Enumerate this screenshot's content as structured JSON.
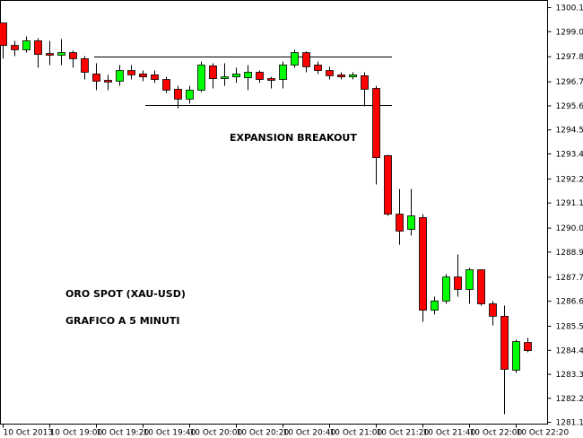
{
  "chart_data": {
    "type": "candlestick",
    "x": [
      "10 Oct 2013",
      null,
      null,
      null,
      "10 Oct 19:00",
      null,
      null,
      null,
      "10 Oct 19:20",
      null,
      null,
      null,
      "10 Oct 19:40",
      null,
      null,
      null,
      "10 Oct 20:00",
      null,
      null,
      null,
      "10 Oct 20:20",
      null,
      null,
      null,
      "10 Oct 20:40",
      null,
      null,
      null,
      "10 Oct 21:00",
      null,
      null,
      null,
      "10 Oct 21:20",
      null,
      null,
      null,
      "10 Oct 21:40",
      null,
      null,
      null,
      "10 Oct 22:00",
      null,
      null,
      null,
      "10 Oct 22:20",
      null
    ],
    "open": [
      1299.4,
      1298.37,
      1298.17,
      1298.58,
      1298.0,
      1297.92,
      1298.04,
      1297.76,
      1297.06,
      1296.77,
      1296.73,
      1297.22,
      1297.06,
      1297.02,
      1296.81,
      1296.36,
      1295.91,
      1296.32,
      1297.43,
      1296.85,
      1296.93,
      1296.89,
      1297.14,
      1296.85,
      1296.81,
      1297.47,
      1298.04,
      1297.47,
      1297.22,
      1297.02,
      1296.93,
      1296.98,
      1296.4,
      1293.32,
      1290.64,
      1289.94,
      1290.48,
      1286.24,
      1286.66,
      1287.76,
      1287.19,
      1288.09,
      1286.53,
      1285.96,
      1283.49,
      1284.76
    ],
    "high": [
      1299.4,
      1298.58,
      1298.78,
      1298.7,
      1298.58,
      1298.66,
      1298.13,
      1297.88,
      1297.55,
      1297.02,
      1297.47,
      1297.47,
      1297.22,
      1297.22,
      1296.93,
      1296.52,
      1296.52,
      1297.63,
      1297.55,
      1297.55,
      1297.35,
      1297.47,
      1297.22,
      1296.93,
      1297.63,
      1298.17,
      1298.09,
      1297.63,
      1297.39,
      1297.14,
      1297.14,
      1297.14,
      1296.52,
      1293.36,
      1291.79,
      1291.79,
      1290.64,
      1286.86,
      1287.89,
      1288.79,
      1288.18,
      1288.09,
      1286.66,
      1286.45,
      1284.89,
      1284.97
    ],
    "low": [
      1297.76,
      1297.88,
      1298.04,
      1297.35,
      1297.47,
      1297.47,
      1297.35,
      1296.81,
      1296.32,
      1296.32,
      1296.52,
      1296.81,
      1296.73,
      1296.65,
      1296.19,
      1295.49,
      1295.7,
      1296.23,
      1296.4,
      1296.52,
      1296.65,
      1296.32,
      1296.65,
      1296.4,
      1296.4,
      1297.35,
      1297.14,
      1297.06,
      1296.81,
      1296.81,
      1296.81,
      1295.58,
      1292.0,
      1290.56,
      1289.24,
      1289.66,
      1285.71,
      1286.04,
      1286.53,
      1286.86,
      1286.53,
      1286.45,
      1285.54,
      1281.47,
      1283.37,
      1284.31
    ],
    "close": [
      1298.37,
      1298.17,
      1298.58,
      1297.96,
      1297.92,
      1298.04,
      1297.76,
      1297.14,
      1296.73,
      1296.69,
      1297.22,
      1297.02,
      1296.93,
      1296.81,
      1296.32,
      1295.91,
      1296.32,
      1297.47,
      1296.85,
      1296.93,
      1297.06,
      1297.14,
      1296.81,
      1296.77,
      1297.47,
      1298.04,
      1297.39,
      1297.22,
      1296.98,
      1296.93,
      1297.02,
      1296.36,
      1293.23,
      1290.64,
      1289.86,
      1290.56,
      1286.24,
      1286.66,
      1287.76,
      1287.19,
      1288.09,
      1286.53,
      1285.96,
      1283.53,
      1284.8,
      1284.39
    ],
    "up_color": "#00ff00",
    "down_color": "#ff0000",
    "ylim": [
      1281.02,
      1300.43
    ],
    "yticks": [
      {
        "value": 1300.1,
        "label": "1300.10"
      },
      {
        "value": 1299.0,
        "label": "1299.00"
      },
      {
        "value": 1297.85,
        "label": "1297.85"
      },
      {
        "value": 1296.7,
        "label": "1296.70"
      },
      {
        "value": 1295.6,
        "label": "1295.60"
      },
      {
        "value": 1294.5,
        "label": "1294.50"
      },
      {
        "value": 1293.4,
        "label": "1293.40"
      },
      {
        "value": 1292.25,
        "label": "1292.25"
      },
      {
        "value": 1291.15,
        "label": "1291.15"
      },
      {
        "value": 1290.0,
        "label": "1290.00"
      },
      {
        "value": 1288.9,
        "label": "1288.90"
      },
      {
        "value": 1287.75,
        "label": "1287.75"
      },
      {
        "value": 1286.65,
        "label": "1286.65"
      },
      {
        "value": 1285.5,
        "label": "1285.50"
      },
      {
        "value": 1284.4,
        "label": "1284.40"
      },
      {
        "value": 1283.3,
        "label": "1283.30"
      },
      {
        "value": 1282.2,
        "label": "1282.20"
      },
      {
        "value": 1281.1,
        "label": "1281.10"
      }
    ],
    "levels": [
      1297.84,
      1295.62
    ],
    "annotations": [
      "EXPANSION BREAKOUT",
      "ORO SPOT (XAU-USD)",
      "GRAFICO A 5 MINUTI"
    ]
  }
}
